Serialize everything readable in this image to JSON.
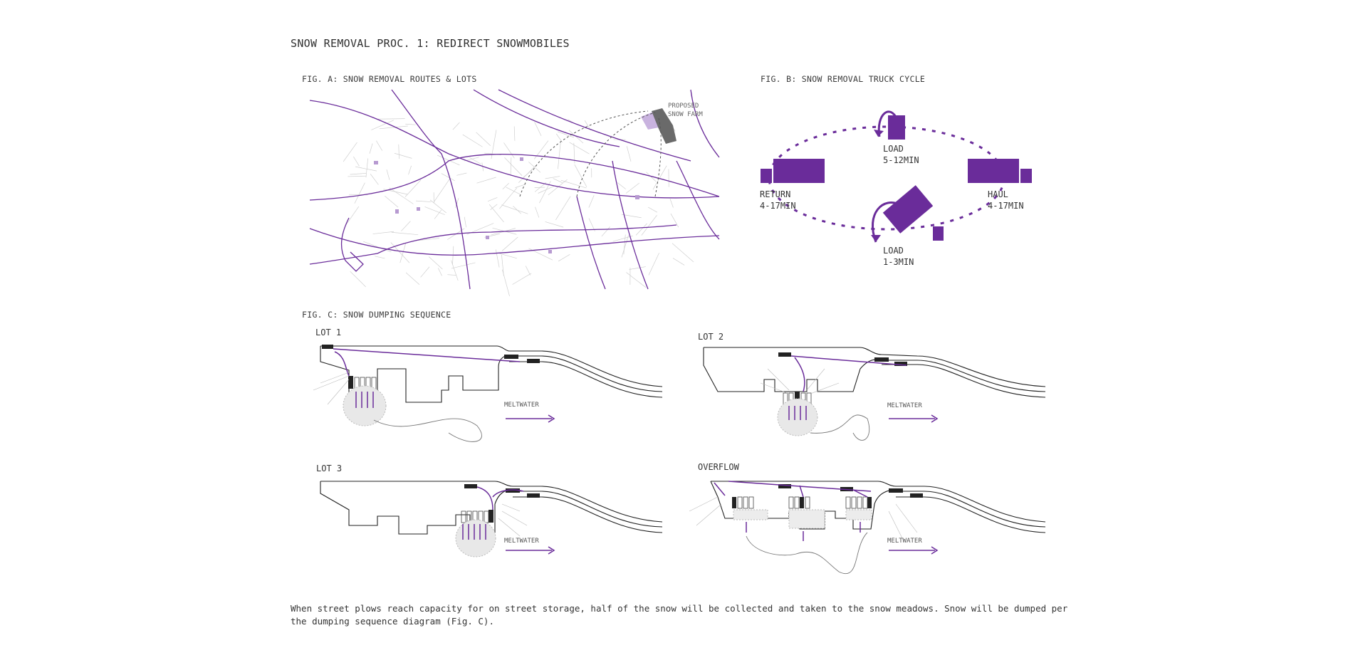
{
  "title": "SNOW REMOVAL PROC. 1: REDIRECT SNOWMOBILES",
  "fig_a": {
    "title": "FIG. A: SNOW REMOVAL ROUTES & LOTS",
    "annotation_line1": "PROPOSED",
    "annotation_line2": "SNOW FARM"
  },
  "fig_b": {
    "title": "FIG. B: SNOW REMOVAL TRUCK CYCLE",
    "load_top": [
      "LOAD",
      "5-12MIN"
    ],
    "return": [
      "RETURN",
      "4-17MIN"
    ],
    "haul": [
      "HAUL",
      "4-17MIN"
    ],
    "load_bottom": [
      "LOAD",
      "1-3MIN"
    ]
  },
  "fig_c": {
    "title": "FIG. C: SNOW DUMPING SEQUENCE",
    "lots": [
      "LOT 1",
      "LOT 2",
      "LOT 3",
      "OVERFLOW"
    ],
    "meltwater": "MELTWATER"
  },
  "paragraph": "When street plows reach capacity for on street storage, half of the snow will be collected and taken to the snow meadows. Snow will be dumped per the dumping sequence diagram (Fig. C).",
  "colors": {
    "accent": "#6a2c9a",
    "ink": "#333333",
    "dark": "#222222"
  }
}
